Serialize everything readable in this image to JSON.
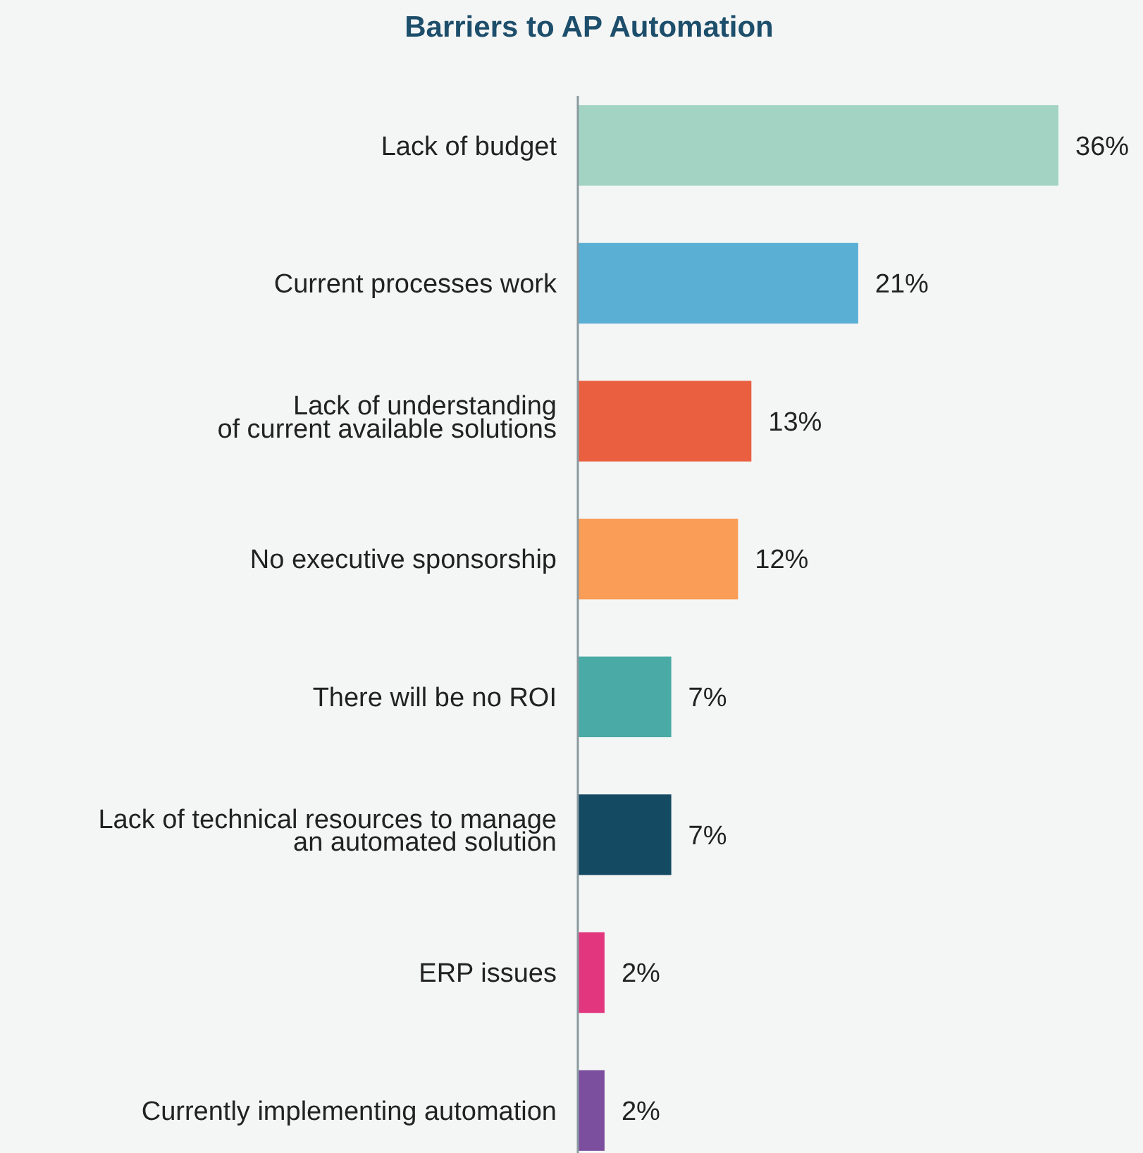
{
  "chart_data": {
    "type": "bar",
    "orientation": "horizontal",
    "title": "Barriers to AP Automation",
    "categories": [
      "Lack of budget",
      "Current processes work",
      "Lack of understanding\nof current available solutions",
      "No executive sponsorship",
      "There will be no ROI",
      "Lack of technical resources to manage\nan automated solution",
      "ERP issues",
      "Currently implementing automation"
    ],
    "values": [
      36,
      21,
      13,
      12,
      7,
      7,
      2,
      2
    ],
    "colors": [
      "#a3d4c3",
      "#5aafd4",
      "#e95f40",
      "#f99d57",
      "#4aaaa5",
      "#154a63",
      "#e2377f",
      "#7c4f9e"
    ],
    "value_labels": [
      "36%",
      "21%",
      "13%",
      "12%",
      "7%",
      "7%",
      "2%",
      "2%"
    ]
  }
}
